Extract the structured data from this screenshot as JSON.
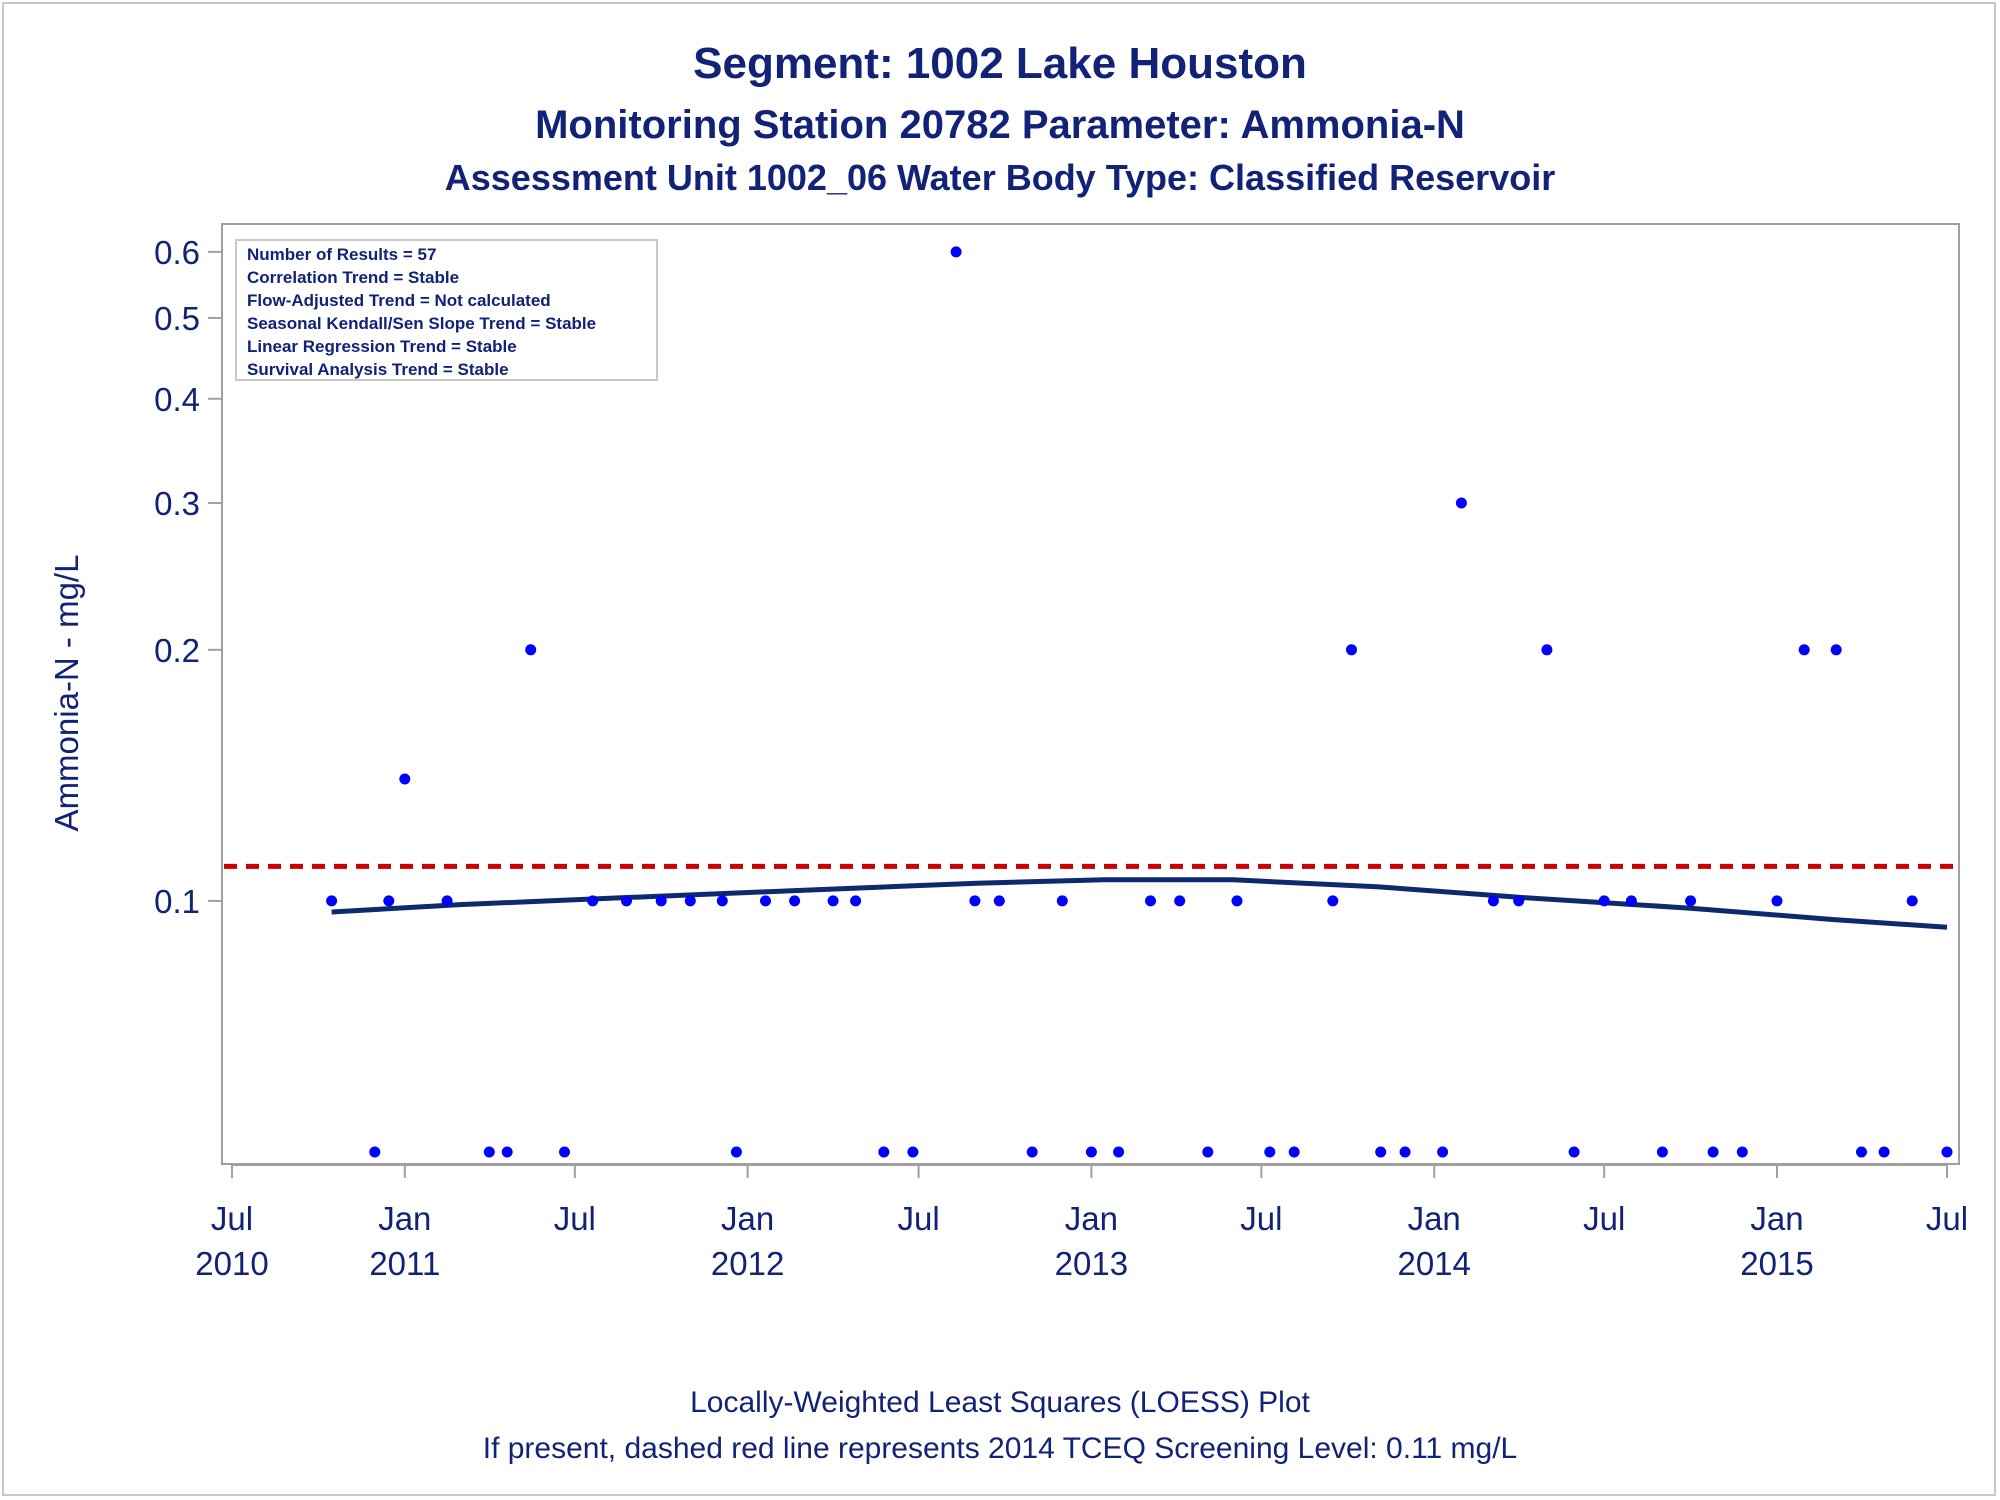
{
  "titles": {
    "line1": "Segment: 1002  Lake Houston",
    "line2": "Monitoring Station 20782 Parameter: Ammonia-N",
    "line3": "Assessment Unit 1002_06   Water Body Type: Classified Reservoir"
  },
  "footnotes": {
    "line1": "Locally-Weighted Least Squares (LOESS) Plot",
    "line2": "If present, dashed red line represents 2014 TCEQ Screening Level: 0.11 mg/L"
  },
  "stats_box": [
    "Number of Results = 57",
    "Correlation Trend = Stable",
    "Flow-Adjusted Trend = Not calculated",
    "Seasonal Kendall/Sen Slope Trend = Stable",
    "Linear Regression Trend = Stable",
    "Survival Analysis Trend = Stable"
  ],
  "colors": {
    "text": "#112277",
    "points": "#0000ff",
    "loess": "#0d2a6e",
    "screening": "#cc0000",
    "frame": "#a0a0a0"
  },
  "chart_data": {
    "type": "scatter",
    "ylabel": "Ammonia-N - mg/L",
    "xlabel": "",
    "y_scale": "log",
    "ylim": [
      0.05,
      0.62
    ],
    "xlim": [
      "2010-07-01",
      "2015-07-01"
    ],
    "y_ticks": [
      {
        "value": 0.1,
        "label": "0.1"
      },
      {
        "value": 0.2,
        "label": "0.2"
      },
      {
        "value": 0.3,
        "label": "0.3"
      },
      {
        "value": 0.4,
        "label": "0.4"
      },
      {
        "value": 0.5,
        "label": "0.5"
      },
      {
        "value": 0.6,
        "label": "0.6"
      }
    ],
    "x_ticks": [
      {
        "date": "2010-07-01",
        "month": "Jul",
        "year": "2010"
      },
      {
        "date": "2011-01-01",
        "month": "Jan",
        "year": "2011"
      },
      {
        "date": "2011-07-01",
        "month": "Jul",
        "year": ""
      },
      {
        "date": "2012-01-01",
        "month": "Jan",
        "year": "2012"
      },
      {
        "date": "2012-07-01",
        "month": "Jul",
        "year": ""
      },
      {
        "date": "2013-01-01",
        "month": "Jan",
        "year": "2013"
      },
      {
        "date": "2013-07-01",
        "month": "Jul",
        "year": ""
      },
      {
        "date": "2014-01-01",
        "month": "Jan",
        "year": "2014"
      },
      {
        "date": "2014-07-01",
        "month": "Jul",
        "year": ""
      },
      {
        "date": "2015-01-01",
        "month": "Jan",
        "year": "2015"
      },
      {
        "date": "2015-07-01",
        "month": "Jul",
        "year": ""
      }
    ],
    "screening_level": 0.11,
    "points": [
      {
        "date": "2010-10-15",
        "value": 0.1
      },
      {
        "date": "2010-11-30",
        "value": 0.05
      },
      {
        "date": "2010-12-15",
        "value": 0.1
      },
      {
        "date": "2011-01-01",
        "value": 0.14
      },
      {
        "date": "2011-02-15",
        "value": 0.1
      },
      {
        "date": "2011-04-01",
        "value": 0.05
      },
      {
        "date": "2011-04-20",
        "value": 0.05
      },
      {
        "date": "2011-05-15",
        "value": 0.2
      },
      {
        "date": "2011-06-20",
        "value": 0.05
      },
      {
        "date": "2011-07-20",
        "value": 0.1
      },
      {
        "date": "2011-08-25",
        "value": 0.1
      },
      {
        "date": "2011-10-01",
        "value": 0.1
      },
      {
        "date": "2011-11-01",
        "value": 0.1
      },
      {
        "date": "2011-12-05",
        "value": 0.1
      },
      {
        "date": "2011-12-20",
        "value": 0.05
      },
      {
        "date": "2012-01-20",
        "value": 0.1
      },
      {
        "date": "2012-02-20",
        "value": 0.1
      },
      {
        "date": "2012-04-01",
        "value": 0.1
      },
      {
        "date": "2012-04-25",
        "value": 0.1
      },
      {
        "date": "2012-05-25",
        "value": 0.05
      },
      {
        "date": "2012-06-25",
        "value": 0.05
      },
      {
        "date": "2012-08-10",
        "value": 0.6
      },
      {
        "date": "2012-08-30",
        "value": 0.1
      },
      {
        "date": "2012-09-25",
        "value": 0.1
      },
      {
        "date": "2012-10-30",
        "value": 0.05
      },
      {
        "date": "2012-12-01",
        "value": 0.1
      },
      {
        "date": "2013-01-01",
        "value": 0.05
      },
      {
        "date": "2013-01-30",
        "value": 0.05
      },
      {
        "date": "2013-03-05",
        "value": 0.1
      },
      {
        "date": "2013-04-05",
        "value": 0.1
      },
      {
        "date": "2013-05-05",
        "value": 0.05
      },
      {
        "date": "2013-06-05",
        "value": 0.1
      },
      {
        "date": "2013-07-10",
        "value": 0.05
      },
      {
        "date": "2013-08-05",
        "value": 0.05
      },
      {
        "date": "2013-09-15",
        "value": 0.1
      },
      {
        "date": "2013-10-05",
        "value": 0.2
      },
      {
        "date": "2013-11-05",
        "value": 0.05
      },
      {
        "date": "2013-12-01",
        "value": 0.05
      },
      {
        "date": "2014-01-10",
        "value": 0.05
      },
      {
        "date": "2014-01-30",
        "value": 0.3
      },
      {
        "date": "2014-03-05",
        "value": 0.1
      },
      {
        "date": "2014-04-01",
        "value": 0.1
      },
      {
        "date": "2014-05-01",
        "value": 0.2
      },
      {
        "date": "2014-05-30",
        "value": 0.05
      },
      {
        "date": "2014-07-01",
        "value": 0.1
      },
      {
        "date": "2014-07-30",
        "value": 0.1
      },
      {
        "date": "2014-09-01",
        "value": 0.05
      },
      {
        "date": "2014-10-01",
        "value": 0.1
      },
      {
        "date": "2014-10-25",
        "value": 0.05
      },
      {
        "date": "2014-11-25",
        "value": 0.05
      },
      {
        "date": "2015-01-01",
        "value": 0.1
      },
      {
        "date": "2015-01-30",
        "value": 0.2
      },
      {
        "date": "2015-03-05",
        "value": 0.2
      },
      {
        "date": "2015-04-01",
        "value": 0.05
      },
      {
        "date": "2015-04-25",
        "value": 0.05
      },
      {
        "date": "2015-05-25",
        "value": 0.1
      },
      {
        "date": "2015-07-01",
        "value": 0.05
      }
    ],
    "loess": [
      {
        "date": "2010-10-15",
        "value": 0.097
      },
      {
        "date": "2011-03-01",
        "value": 0.099
      },
      {
        "date": "2011-09-01",
        "value": 0.101
      },
      {
        "date": "2012-03-01",
        "value": 0.103
      },
      {
        "date": "2012-09-01",
        "value": 0.105
      },
      {
        "date": "2013-01-15",
        "value": 0.106
      },
      {
        "date": "2013-06-01",
        "value": 0.106
      },
      {
        "date": "2013-11-01",
        "value": 0.104
      },
      {
        "date": "2014-04-01",
        "value": 0.101
      },
      {
        "date": "2014-10-01",
        "value": 0.098
      },
      {
        "date": "2015-03-01",
        "value": 0.095
      },
      {
        "date": "2015-07-01",
        "value": 0.093
      }
    ]
  }
}
